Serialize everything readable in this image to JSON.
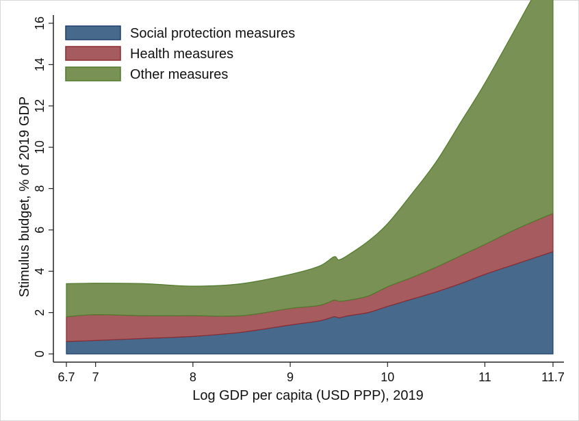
{
  "chart_data": {
    "type": "area",
    "stacked": true,
    "title": "",
    "xlabel": "Log GDP per capita (USD PPP), 2019",
    "ylabel": "Stimulus budget, % of 2019 GDP",
    "xlim": [
      6.7,
      11.7
    ],
    "ylim": [
      0,
      16
    ],
    "xticks": [
      6.7,
      7,
      8,
      9,
      10,
      11,
      11.7
    ],
    "xtick_labels": [
      "6.7",
      "7",
      "8",
      "9",
      "10",
      "11",
      "11.7"
    ],
    "yticks": [
      0,
      2,
      4,
      6,
      8,
      10,
      12,
      14,
      16
    ],
    "ytick_labels": [
      "0",
      "2",
      "4",
      "6",
      "8",
      "10",
      "12",
      "14",
      "16"
    ],
    "grid": false,
    "legend_position": "top-left",
    "x": [
      6.7,
      7.0,
      7.5,
      8.0,
      8.5,
      9.0,
      9.3,
      9.45,
      9.5,
      9.6,
      9.8,
      10.0,
      10.25,
      10.5,
      10.75,
      11.0,
      11.35,
      11.7
    ],
    "series": [
      {
        "name": "Social protection measures",
        "color": "#476a8c",
        "edge": "#1f3f6a",
        "values": [
          0.6,
          0.65,
          0.75,
          0.85,
          1.05,
          1.4,
          1.6,
          1.8,
          1.75,
          1.85,
          2.0,
          2.3,
          2.65,
          3.0,
          3.4,
          3.85,
          4.4,
          4.95
        ]
      },
      {
        "name": "Health measures",
        "color": "#a65c5f",
        "edge": "#8b2a30",
        "values": [
          1.2,
          1.25,
          1.1,
          1.0,
          0.8,
          0.8,
          0.75,
          0.8,
          0.8,
          0.75,
          0.8,
          0.95,
          1.05,
          1.2,
          1.35,
          1.45,
          1.7,
          1.85
        ]
      },
      {
        "name": "Other measures",
        "color": "#7a9155",
        "edge": "#4f7a2a",
        "values": [
          1.6,
          1.52,
          1.55,
          1.43,
          1.55,
          1.65,
          1.9,
          2.1,
          2.0,
          2.2,
          2.65,
          3.05,
          4.05,
          5.1,
          6.45,
          7.8,
          9.95,
          12.25
        ]
      }
    ]
  }
}
